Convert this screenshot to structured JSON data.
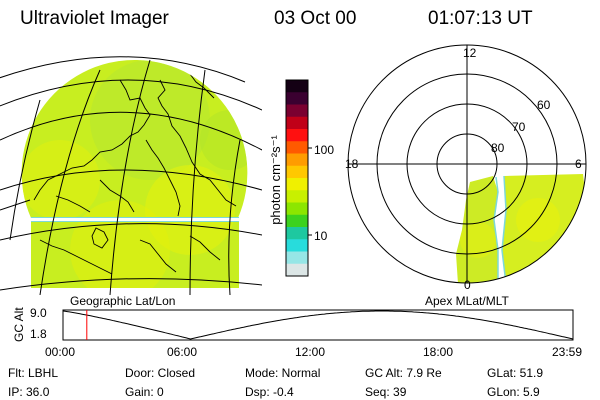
{
  "header": {
    "title": "Ultraviolet Imager",
    "date": "03 Oct 00",
    "time": "01:07:13 UT"
  },
  "colorbar": {
    "label": "photon cm⁻²s⁻¹",
    "ticks": [
      "100",
      "10"
    ],
    "colors_top_to_bottom": [
      "#140014",
      "#3a0030",
      "#7a0030",
      "#c00018",
      "#ff1010",
      "#ff5a00",
      "#ff9c00",
      "#ffc800",
      "#f0f000",
      "#c8f000",
      "#8ce600",
      "#3cd21e",
      "#1ec8a0",
      "#28dcdc",
      "#96e6e6",
      "#dce6e6"
    ]
  },
  "polar": {
    "mlt_labels": [
      "12",
      "18",
      "6",
      "0"
    ],
    "lat_labels": [
      "60",
      "70",
      "80"
    ]
  },
  "map_labels": {
    "left": "Geographic Lat/Lon",
    "right": "Apex MLat/MLT"
  },
  "timeline": {
    "ylabel": "GC Alt",
    "yticks": [
      "9.0",
      "1.8"
    ],
    "xticks": [
      "00:00",
      "06:00",
      "12:00",
      "18:00",
      "23:59"
    ],
    "marker_time_hours": 1.12,
    "marker_color": "#ff0000"
  },
  "info": {
    "flt": "Flt: LBHL",
    "ip": "IP: 36.0",
    "door": "Door: Closed",
    "gain": "Gain:  0",
    "mode": "Mode: Normal",
    "dsp": "Dsp:    -0.4",
    "gc_alt": "GC Alt: 7.9 Re",
    "seq": "Seq: 39",
    "glat": "GLat:  51.9",
    "glon": "GLon:   5.9"
  }
}
